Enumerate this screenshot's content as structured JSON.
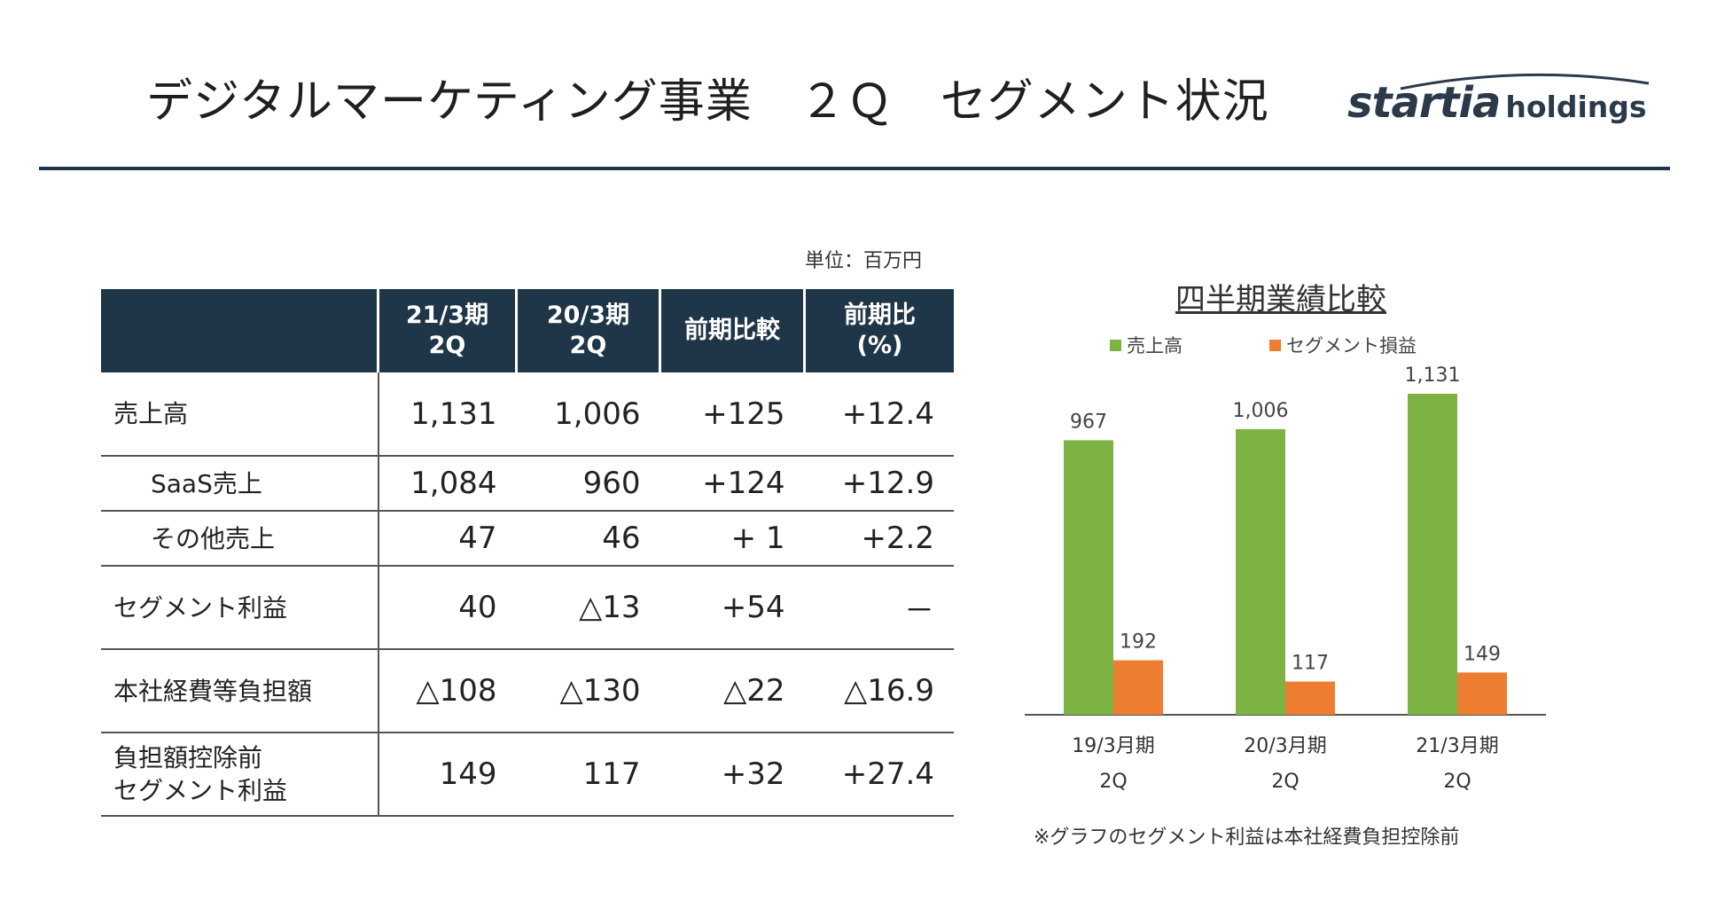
{
  "header": {
    "title": "デジタルマーケティング事業　２Ｑ　セグメント状況",
    "logo_brand": "startia",
    "logo_sub": "holdings"
  },
  "table": {
    "unit": "単位：百万円",
    "columns": [
      "",
      "21/3期\n2Q",
      "20/3期\n2Q",
      "前期比較",
      "前期比\n(%)"
    ],
    "rows": [
      {
        "label": "売上高",
        "indent": false,
        "values": [
          "1,131",
          "1,006",
          "+125",
          "+12.4"
        ]
      },
      {
        "label": "SaaS売上",
        "indent": true,
        "values": [
          "1,084",
          "960",
          "+124",
          "+12.9"
        ]
      },
      {
        "label": "その他売上",
        "indent": true,
        "values": [
          "47",
          "46",
          "+ 1",
          "+2.2"
        ]
      },
      {
        "label": "セグメント利益",
        "indent": false,
        "values": [
          "40",
          "△13",
          "+54",
          "－"
        ]
      },
      {
        "label": "本社経費等負担額",
        "indent": false,
        "values": [
          "△108",
          "△130",
          "△22",
          "△16.9"
        ]
      },
      {
        "label": "負担額控除前\nセグメント利益",
        "indent": false,
        "values": [
          "149",
          "117",
          "+32",
          "+27.4"
        ]
      }
    ]
  },
  "chart": {
    "title": "四半期業績比較",
    "footnote": "※グラフのセグメント利益は本社経費負担控除前"
  },
  "chart_data": {
    "type": "bar",
    "title": "四半期業績比較",
    "categories": [
      "19/3月期\n2Q",
      "20/3月期\n2Q",
      "21/3月期\n2Q"
    ],
    "series": [
      {
        "name": "売上高",
        "color": "#7cb342",
        "values": [
          967,
          1006,
          1131
        ],
        "labels": [
          "967",
          "1,006",
          "1,131"
        ]
      },
      {
        "name": "セグメント損益",
        "color": "#ed7d31",
        "values": [
          192,
          117,
          149
        ],
        "labels": [
          "192",
          "117",
          "149"
        ]
      }
    ],
    "ylim": [
      0,
      1131
    ],
    "grid": false,
    "legend": "top"
  }
}
